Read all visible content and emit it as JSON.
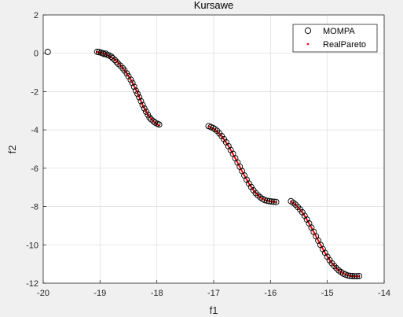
{
  "chart_data": {
    "type": "scatter",
    "title": "Kursawe",
    "xlabel": "f1",
    "ylabel": "f2",
    "xlim": [
      -20,
      -14
    ],
    "ylim": [
      -12,
      2
    ],
    "xticks": [
      -20,
      -19,
      -18,
      -17,
      -16,
      -15,
      -14
    ],
    "yticks": [
      -12,
      -10,
      -8,
      -6,
      -4,
      -2,
      0,
      2
    ],
    "grid": true,
    "legend_position": "top-right",
    "series": [
      {
        "name": "MOMPA",
        "marker": "open-circle",
        "color": "#000000",
        "points": [
          [
            -19.92,
            0.07
          ],
          [
            -19.05,
            0.08
          ],
          [
            -19.02,
            0.06
          ],
          [
            -18.98,
            0.03
          ],
          [
            -18.95,
            0.0
          ],
          [
            -18.93,
            -0.04
          ],
          [
            -18.9,
            -0.02
          ],
          [
            -18.87,
            -0.08
          ],
          [
            -18.84,
            -0.12
          ],
          [
            -18.8,
            -0.18
          ],
          [
            -18.78,
            -0.25
          ],
          [
            -18.74,
            -0.35
          ],
          [
            -18.71,
            -0.45
          ],
          [
            -18.68,
            -0.55
          ],
          [
            -18.64,
            -0.65
          ],
          [
            -18.6,
            -0.78
          ],
          [
            -18.57,
            -0.9
          ],
          [
            -18.53,
            -1.05
          ],
          [
            -18.5,
            -1.2
          ],
          [
            -18.46,
            -1.38
          ],
          [
            -18.43,
            -1.55
          ],
          [
            -18.4,
            -1.75
          ],
          [
            -18.37,
            -1.95
          ],
          [
            -18.34,
            -2.12
          ],
          [
            -18.31,
            -2.3
          ],
          [
            -18.28,
            -2.5
          ],
          [
            -18.25,
            -2.7
          ],
          [
            -18.22,
            -2.88
          ],
          [
            -18.19,
            -3.05
          ],
          [
            -18.16,
            -3.2
          ],
          [
            -18.13,
            -3.35
          ],
          [
            -18.1,
            -3.45
          ],
          [
            -18.06,
            -3.55
          ],
          [
            -18.03,
            -3.62
          ],
          [
            -17.99,
            -3.68
          ],
          [
            -17.96,
            -3.72
          ],
          [
            -17.09,
            -3.8
          ],
          [
            -17.05,
            -3.85
          ],
          [
            -17.01,
            -3.9
          ],
          [
            -16.98,
            -3.96
          ],
          [
            -16.94,
            -4.05
          ],
          [
            -16.9,
            -4.18
          ],
          [
            -16.86,
            -4.32
          ],
          [
            -16.82,
            -4.48
          ],
          [
            -16.78,
            -4.65
          ],
          [
            -16.74,
            -4.85
          ],
          [
            -16.7,
            -5.05
          ],
          [
            -16.66,
            -5.25
          ],
          [
            -16.62,
            -5.48
          ],
          [
            -16.58,
            -5.7
          ],
          [
            -16.54,
            -5.92
          ],
          [
            -16.5,
            -6.15
          ],
          [
            -16.46,
            -6.38
          ],
          [
            -16.42,
            -6.6
          ],
          [
            -16.38,
            -6.8
          ],
          [
            -16.34,
            -6.98
          ],
          [
            -16.3,
            -7.15
          ],
          [
            -16.26,
            -7.3
          ],
          [
            -16.22,
            -7.42
          ],
          [
            -16.18,
            -7.52
          ],
          [
            -16.14,
            -7.6
          ],
          [
            -16.1,
            -7.66
          ],
          [
            -16.06,
            -7.7
          ],
          [
            -16.02,
            -7.72
          ],
          [
            -15.98,
            -7.74
          ],
          [
            -15.94,
            -7.75
          ],
          [
            -15.9,
            -7.76
          ],
          [
            -15.64,
            -7.72
          ],
          [
            -15.6,
            -7.8
          ],
          [
            -15.56,
            -7.9
          ],
          [
            -15.52,
            -8.02
          ],
          [
            -15.48,
            -8.15
          ],
          [
            -15.44,
            -8.3
          ],
          [
            -15.4,
            -8.48
          ],
          [
            -15.36,
            -8.68
          ],
          [
            -15.32,
            -8.88
          ],
          [
            -15.28,
            -9.1
          ],
          [
            -15.24,
            -9.32
          ],
          [
            -15.2,
            -9.55
          ],
          [
            -15.16,
            -9.78
          ],
          [
            -15.12,
            -10.0
          ],
          [
            -15.08,
            -10.22
          ],
          [
            -15.04,
            -10.42
          ],
          [
            -15.0,
            -10.62
          ],
          [
            -14.96,
            -10.8
          ],
          [
            -14.92,
            -10.96
          ],
          [
            -14.88,
            -11.1
          ],
          [
            -14.84,
            -11.22
          ],
          [
            -14.8,
            -11.33
          ],
          [
            -14.76,
            -11.42
          ],
          [
            -14.72,
            -11.5
          ],
          [
            -14.68,
            -11.55
          ],
          [
            -14.64,
            -11.6
          ],
          [
            -14.6,
            -11.62
          ],
          [
            -14.56,
            -11.63
          ],
          [
            -14.52,
            -11.64
          ],
          [
            -14.48,
            -11.64
          ],
          [
            -14.44,
            -11.63
          ]
        ]
      },
      {
        "name": "RealPareto",
        "marker": "dot",
        "color": "#ff0000",
        "segments": [
          [
            [
              -19.05,
              0.07
            ],
            [
              -18.95,
              -0.0
            ],
            [
              -18.85,
              -0.12
            ],
            [
              -18.75,
              -0.3
            ],
            [
              -18.65,
              -0.6
            ],
            [
              -18.55,
              -0.95
            ],
            [
              -18.45,
              -1.42
            ],
            [
              -18.35,
              -2.0
            ],
            [
              -18.25,
              -2.7
            ],
            [
              -18.15,
              -3.25
            ],
            [
              -18.05,
              -3.58
            ],
            [
              -17.96,
              -3.78
            ]
          ],
          [
            [
              -17.08,
              -3.82
            ],
            [
              -16.98,
              -3.98
            ],
            [
              -16.88,
              -4.25
            ],
            [
              -16.78,
              -4.65
            ],
            [
              -16.68,
              -5.15
            ],
            [
              -16.58,
              -5.7
            ],
            [
              -16.48,
              -6.27
            ],
            [
              -16.38,
              -6.8
            ],
            [
              -16.28,
              -7.22
            ],
            [
              -16.18,
              -7.52
            ],
            [
              -16.08,
              -7.68
            ],
            [
              -15.98,
              -7.74
            ],
            [
              -15.9,
              -7.77
            ]
          ],
          [
            [
              -15.64,
              -7.73
            ],
            [
              -15.54,
              -7.95
            ],
            [
              -15.44,
              -8.3
            ],
            [
              -15.34,
              -8.78
            ],
            [
              -15.24,
              -9.32
            ],
            [
              -15.14,
              -9.88
            ],
            [
              -15.04,
              -10.42
            ],
            [
              -14.94,
              -10.88
            ],
            [
              -14.84,
              -11.22
            ],
            [
              -14.74,
              -11.46
            ],
            [
              -14.64,
              -11.6
            ],
            [
              -14.54,
              -11.64
            ],
            [
              -14.44,
              -11.64
            ]
          ]
        ]
      }
    ]
  }
}
